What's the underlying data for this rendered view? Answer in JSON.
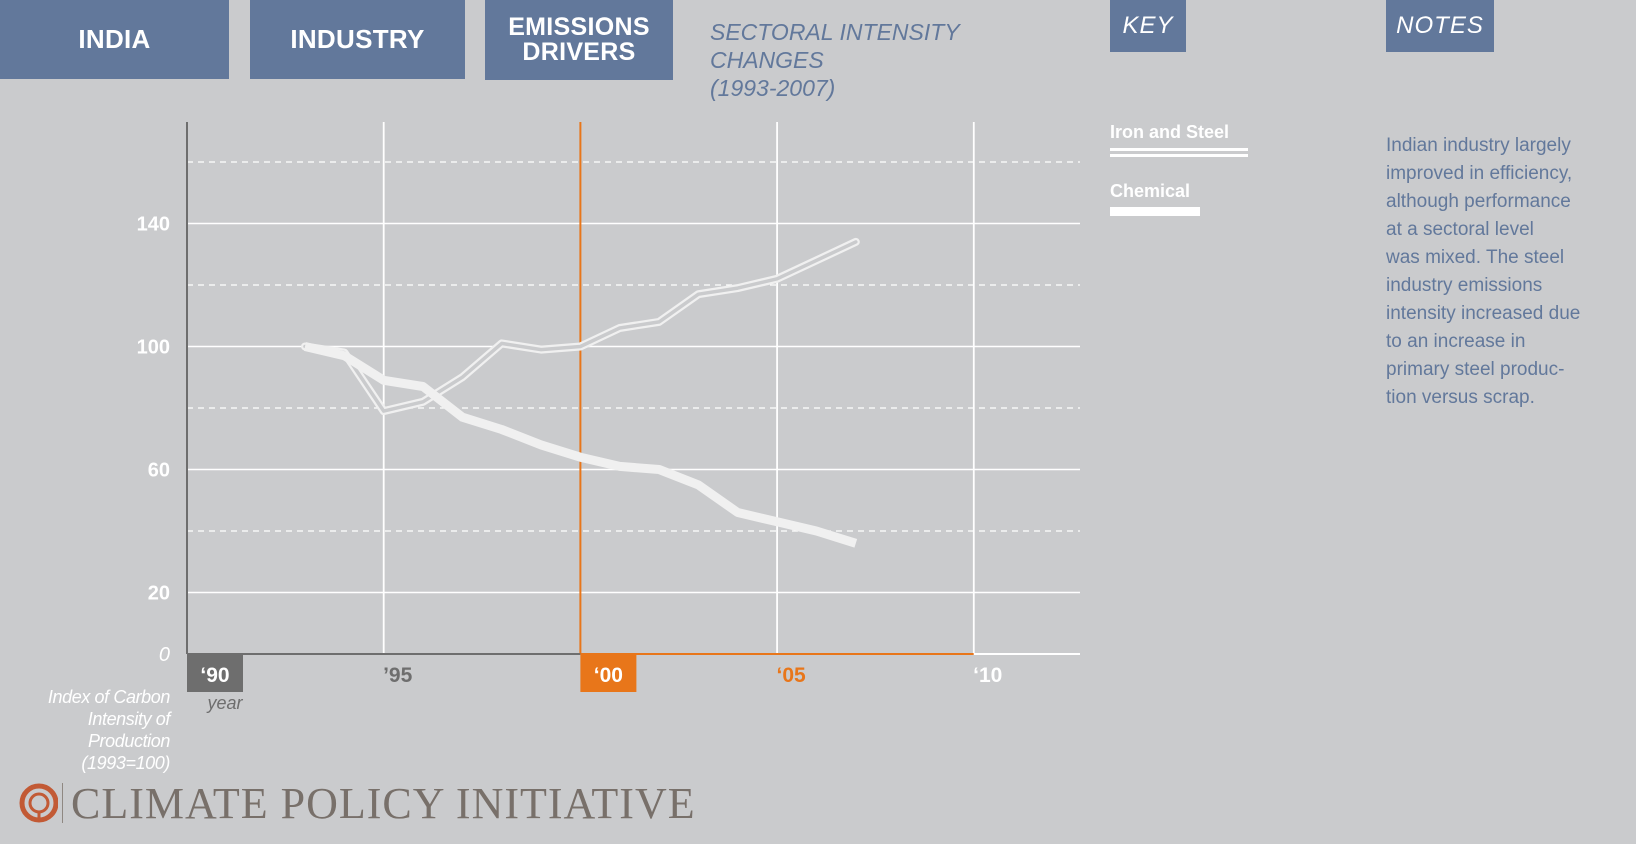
{
  "header": {
    "tabs": [
      {
        "label": "INDIA"
      },
      {
        "label": "INDUSTRY"
      },
      {
        "label": "EMISSIONS\nDRIVERS"
      }
    ],
    "title": "SECTORAL INTENSITY CHANGES\n(1993-2007)",
    "key_label": "KEY",
    "notes_label": "NOTES"
  },
  "notes": {
    "lines": [
      "Indian industry largely",
      "improved in efficiency,",
      "although performance",
      "at a sectoral level",
      "was mixed. The steel",
      "industry emissions",
      "intensity increased due",
      "to an increase in",
      "primary steel produc-",
      "tion versus scrap."
    ]
  },
  "footer": {
    "logo_text": "CLIMATE POLICY INITIATIVE"
  },
  "colors": {
    "accent": "#e8761a",
    "brand": "#62789b",
    "line": "#f0f0f0",
    "background": "#cacbcd"
  },
  "chart_data": {
    "type": "line",
    "title": "SECTORAL INTENSITY CHANGES (1993-2007)",
    "ylabel_lines": [
      "Index of Carbon",
      "Intensity of",
      "Production",
      "(1993=100)"
    ],
    "xlabel": "year",
    "xlim": [
      1990,
      2012.7
    ],
    "ylim": [
      0,
      173
    ],
    "y_ticks": [
      0,
      20,
      60,
      100,
      140
    ],
    "y_tick_labels": [
      "0",
      "20",
      "60",
      "100",
      "140"
    ],
    "y_grid_solid": [
      20,
      60,
      100,
      140
    ],
    "y_grid_dashed": [
      40,
      80,
      120,
      160
    ],
    "x_ticks": [
      1990,
      1995,
      2000,
      2005,
      2010
    ],
    "x_tick_labels": [
      "‘90",
      "’95",
      "‘00",
      "‘05",
      "‘10"
    ],
    "highlight_ticks": [
      2000,
      2005
    ],
    "boxed_ticks": [
      1990,
      2000
    ],
    "highlight_year": 2000,
    "series": [
      {
        "name": "Iron and Steel",
        "style": "double",
        "x": [
          1993,
          1994,
          1995,
          1996,
          1997,
          1998,
          1999,
          2000,
          2001,
          2002,
          2003,
          2004,
          2005,
          2006,
          2007
        ],
        "values": [
          100,
          98,
          79,
          82,
          90,
          101,
          99,
          100,
          106,
          108,
          117,
          119,
          122,
          128,
          134
        ]
      },
      {
        "name": "Chemical",
        "style": "thick",
        "x": [
          1993,
          1994,
          1995,
          1996,
          1997,
          1998,
          1999,
          2000,
          2001,
          2002,
          2003,
          2004,
          2005,
          2006,
          2007
        ],
        "values": [
          100,
          97,
          89,
          87,
          77,
          73,
          68,
          64,
          61,
          60,
          55,
          46,
          43,
          40,
          36
        ]
      }
    ]
  }
}
